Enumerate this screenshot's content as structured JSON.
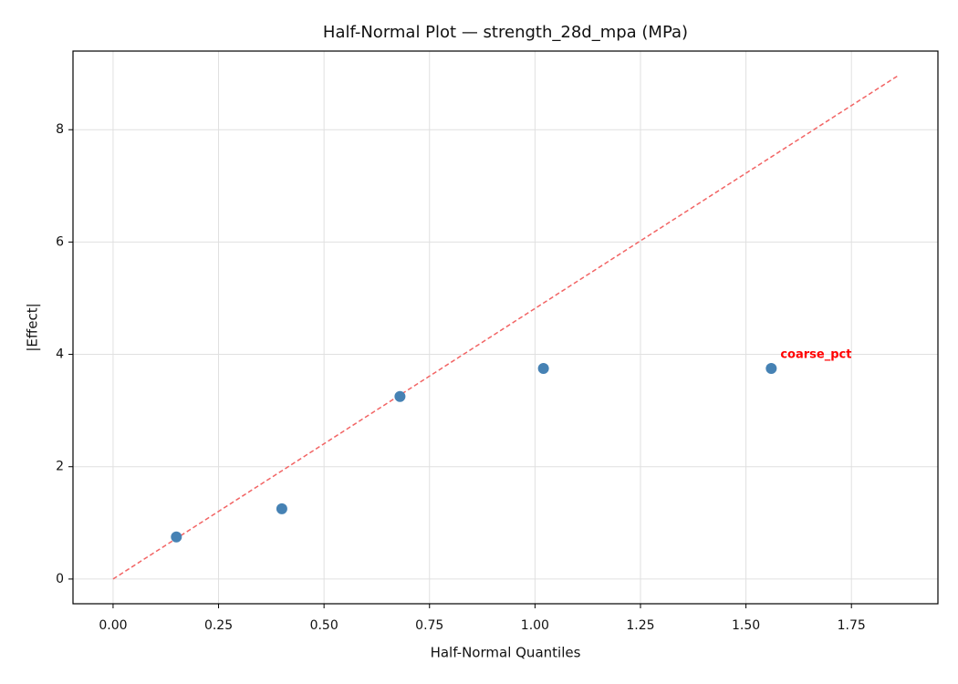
{
  "chart_data": {
    "type": "scatter",
    "title": "Half-Normal Plot — strength_28d_mpa (MPa)",
    "x_label": "Half-Normal Quantiles",
    "y_label": "|Effect|",
    "x": [
      0.15,
      0.4,
      0.68,
      1.02,
      1.56
    ],
    "values": [
      0.75,
      1.25,
      3.25,
      3.75,
      3.75
    ],
    "point_labels": [
      null,
      null,
      null,
      null,
      "coarse_pct"
    ],
    "point_label_color": "#ff0000",
    "color": "#4682b4",
    "reference_line": {
      "x": [
        0,
        1.86
      ],
      "values": [
        0,
        8.96
      ],
      "color": "#f26464",
      "dashed": true
    },
    "xlim": [
      -0.095,
      1.955
    ],
    "ylim": [
      -0.44,
      9.4
    ],
    "xticks": [
      {
        "value": 0,
        "label": "0.00"
      },
      0.25,
      {
        "value": 0.5,
        "label": "0.50"
      },
      0.75,
      {
        "value": 1,
        "label": "1.00"
      },
      1.25,
      {
        "value": 1.5,
        "label": "1.50"
      },
      1.75
    ],
    "yticks": [
      0,
      2,
      4,
      6,
      8
    ],
    "grid": true
  }
}
